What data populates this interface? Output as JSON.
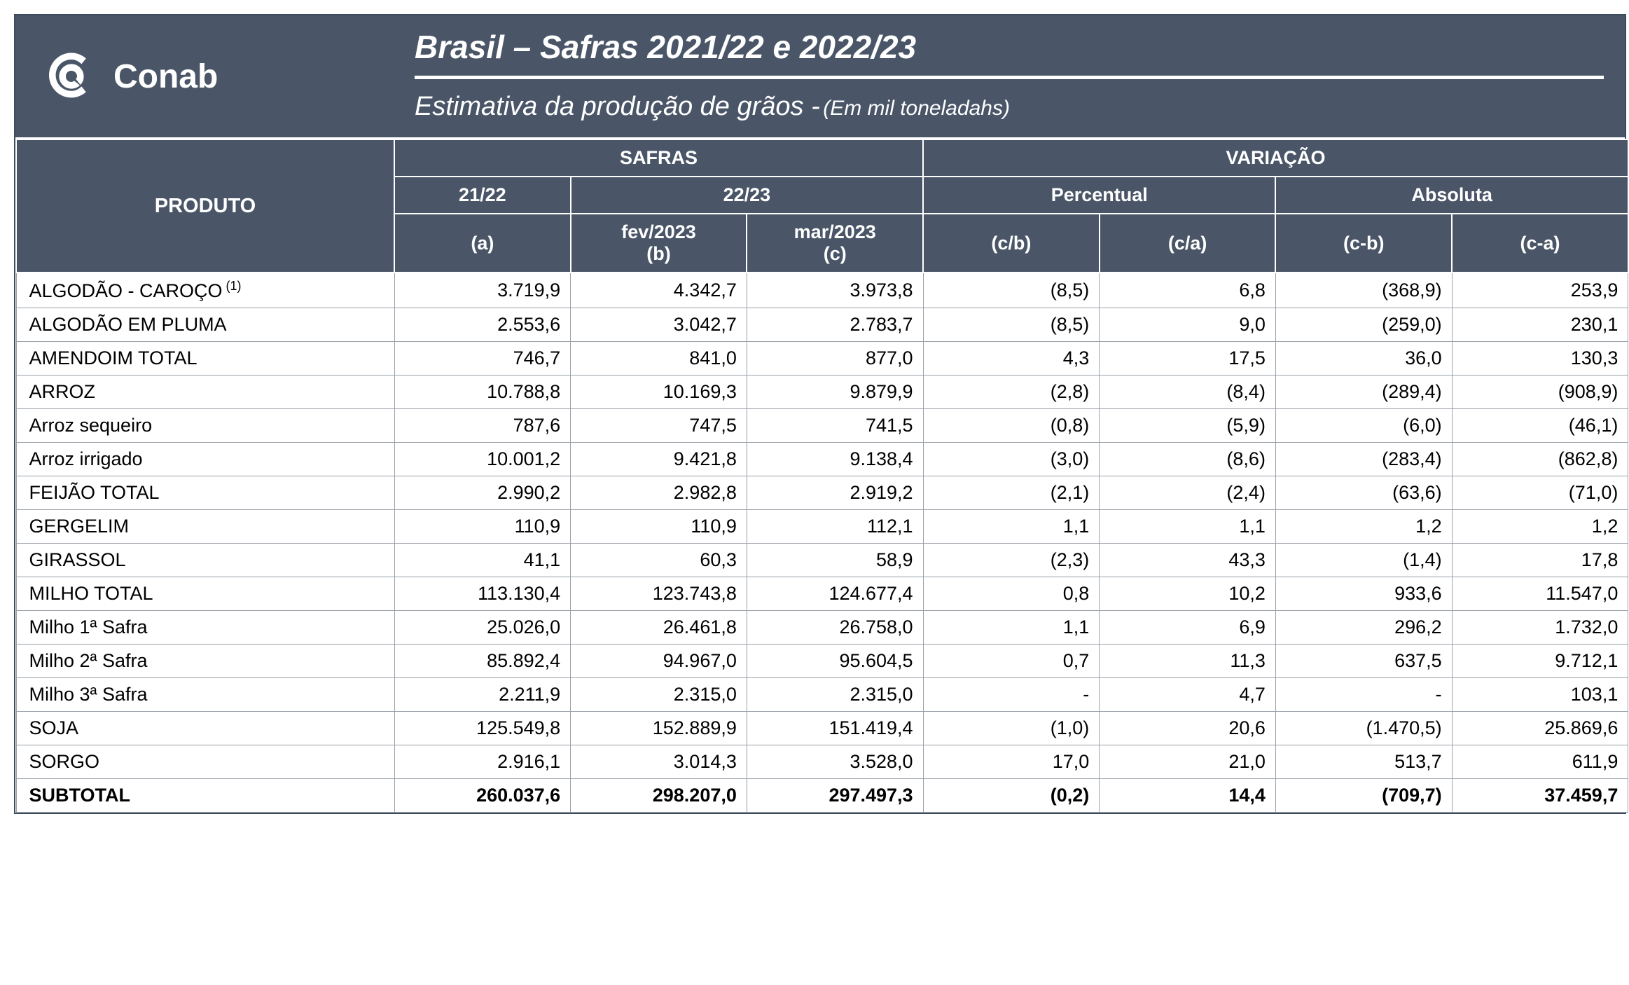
{
  "brand": "Conab",
  "title": "Brasil – Safras 2021/22 e 2022/23",
  "subtitle": "Estimativa da produção de grãos -",
  "subtitle_unit": "(Em mil toneladahs)",
  "headers": {
    "produto": "PRODUTO",
    "safras": "SAFRAS",
    "variacao": "VARIAÇÃO",
    "s2122": "21/22",
    "s2223": "22/23",
    "percentual": "Percentual",
    "absoluta": "Absoluta",
    "a": "(a)",
    "b_top": "fev/2023",
    "b_bot": "(b)",
    "c_top": "mar/2023",
    "c_bot": "(c)",
    "cb": "(c/b)",
    "ca": "(c/a)",
    "c_b": "(c-b)",
    "c_a": "(c-a)"
  },
  "rows": [
    {
      "name": "ALGODÃO - CAROÇO",
      "sup": "(1)",
      "a": "3.719,9",
      "b": "4.342,7",
      "c": "3.973,8",
      "cb": "(8,5)",
      "ca": "6,8",
      "c_b": "(368,9)",
      "c_a": "253,9"
    },
    {
      "name": "ALGODÃO EM PLUMA",
      "a": "2.553,6",
      "b": "3.042,7",
      "c": "2.783,7",
      "cb": "(8,5)",
      "ca": "9,0",
      "c_b": "(259,0)",
      "c_a": "230,1"
    },
    {
      "name": "AMENDOIM TOTAL",
      "a": "746,7",
      "b": "841,0",
      "c": "877,0",
      "cb": "4,3",
      "ca": "17,5",
      "c_b": "36,0",
      "c_a": "130,3"
    },
    {
      "name": "ARROZ",
      "a": "10.788,8",
      "b": "10.169,3",
      "c": "9.879,9",
      "cb": "(2,8)",
      "ca": "(8,4)",
      "c_b": "(289,4)",
      "c_a": "(908,9)"
    },
    {
      "name": "Arroz sequeiro",
      "a": "787,6",
      "b": "747,5",
      "c": "741,5",
      "cb": "(0,8)",
      "ca": "(5,9)",
      "c_b": "(6,0)",
      "c_a": "(46,1)"
    },
    {
      "name": "Arroz irrigado",
      "a": "10.001,2",
      "b": "9.421,8",
      "c": "9.138,4",
      "cb": "(3,0)",
      "ca": "(8,6)",
      "c_b": "(283,4)",
      "c_a": "(862,8)"
    },
    {
      "name": "FEIJÃO TOTAL",
      "a": "2.990,2",
      "b": "2.982,8",
      "c": "2.919,2",
      "cb": "(2,1)",
      "ca": "(2,4)",
      "c_b": "(63,6)",
      "c_a": "(71,0)"
    },
    {
      "name": "GERGELIM",
      "a": "110,9",
      "b": "110,9",
      "c": "112,1",
      "cb": "1,1",
      "ca": "1,1",
      "c_b": "1,2",
      "c_a": "1,2"
    },
    {
      "name": "GIRASSOL",
      "a": "41,1",
      "b": "60,3",
      "c": "58,9",
      "cb": "(2,3)",
      "ca": "43,3",
      "c_b": "(1,4)",
      "c_a": "17,8"
    },
    {
      "name": "MILHO TOTAL",
      "a": "113.130,4",
      "b": "123.743,8",
      "c": "124.677,4",
      "cb": "0,8",
      "ca": "10,2",
      "c_b": "933,6",
      "c_a": "11.547,0"
    },
    {
      "name": "Milho 1ª Safra",
      "a": "25.026,0",
      "b": "26.461,8",
      "c": "26.758,0",
      "cb": "1,1",
      "ca": "6,9",
      "c_b": "296,2",
      "c_a": "1.732,0"
    },
    {
      "name": "Milho 2ª Safra",
      "a": "85.892,4",
      "b": "94.967,0",
      "c": "95.604,5",
      "cb": "0,7",
      "ca": "11,3",
      "c_b": "637,5",
      "c_a": "9.712,1"
    },
    {
      "name": "Milho 3ª Safra",
      "a": "2.211,9",
      "b": "2.315,0",
      "c": "2.315,0",
      "cb": "-",
      "ca": "4,7",
      "c_b": "-",
      "c_a": "103,1"
    },
    {
      "name": "SOJA",
      "a": "125.549,8",
      "b": "152.889,9",
      "c": "151.419,4",
      "cb": "(1,0)",
      "ca": "20,6",
      "c_b": "(1.470,5)",
      "c_a": "25.869,6"
    },
    {
      "name": "SORGO",
      "a": "2.916,1",
      "b": "3.014,3",
      "c": "3.528,0",
      "cb": "17,0",
      "ca": "21,0",
      "c_b": "513,7",
      "c_a": "611,9"
    },
    {
      "name": "SUBTOTAL",
      "subtotal": true,
      "a": "260.037,6",
      "b": "298.207,0",
      "c": "297.497,3",
      "cb": "(0,2)",
      "ca": "14,4",
      "c_b": "(709,7)",
      "c_a": "37.459,7"
    }
  ],
  "style": {
    "header_bg": "#4a5668",
    "header_fg": "#ffffff",
    "cell_border": "#9aa0a8",
    "page_border": "#3d4b5c",
    "body_bg": "#ffffff",
    "font_family": "Arial",
    "title_fontsize": 46,
    "subtitle_fontsize": 38,
    "th_fontsize": 27,
    "td_fontsize": 27
  }
}
